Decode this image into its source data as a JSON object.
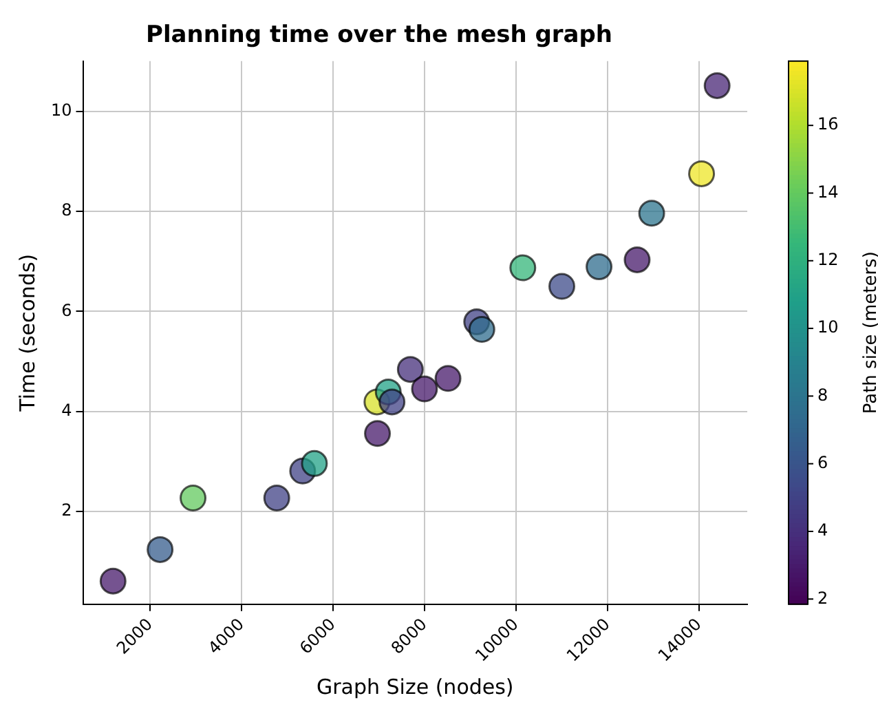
{
  "chart_data": {
    "type": "scatter",
    "title": "Planning time over the mesh graph",
    "xlabel": "Graph Size (nodes)",
    "ylabel": "Time (seconds)",
    "clabel": "Path size (meters)",
    "x": [
      1188,
      2216,
      2936,
      4766,
      5332,
      5589,
      6967,
      6956,
      7203,
      7285,
      7686,
      7995,
      8509,
      9136,
      9249,
      10144,
      10997,
      11810,
      12643,
      12961,
      14051,
      14391
    ],
    "values": [
      0.61,
      1.24,
      2.27,
      2.27,
      2.81,
      2.96,
      3.56,
      4.19,
      4.39,
      4.19,
      4.84,
      4.45,
      4.66,
      5.79,
      5.64,
      6.87,
      6.5,
      6.89,
      7.03,
      7.96,
      8.75,
      10.51
    ],
    "cvalues": [
      3,
      6.5,
      14,
      5,
      5,
      11,
      3,
      17,
      11,
      5,
      4,
      3,
      3,
      5,
      7.5,
      12.5,
      5.5,
      7.5,
      3,
      8,
      17.5,
      3.5
    ],
    "xlim": [
      530,
      15050
    ],
    "ylim": [
      0.15,
      11
    ],
    "xticks": [
      2000,
      4000,
      6000,
      8000,
      10000,
      12000,
      14000
    ],
    "yticks": [
      2,
      4,
      6,
      8,
      10
    ],
    "clim": [
      1.85,
      17.9
    ],
    "cticks": [
      2,
      4,
      6,
      8,
      10,
      12,
      14,
      16
    ],
    "marker": "circle",
    "grid": true,
    "legend": false
  }
}
